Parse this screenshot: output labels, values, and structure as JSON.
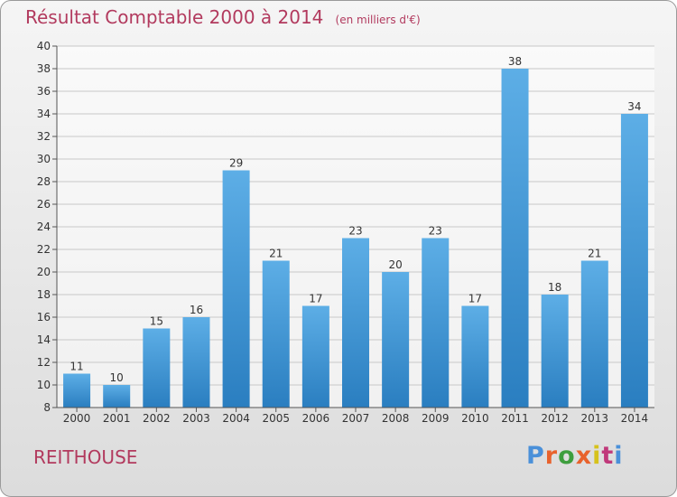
{
  "chart_data": {
    "type": "bar",
    "title": "Résultat Comptable 2000 à 2014",
    "subtitle": "(en milliers d'€)",
    "categories": [
      "2000",
      "2001",
      "2002",
      "2003",
      "2004",
      "2005",
      "2006",
      "2007",
      "2008",
      "2009",
      "2010",
      "2011",
      "2012",
      "2013",
      "2014"
    ],
    "values": [
      11,
      10,
      15,
      16,
      29,
      21,
      17,
      23,
      20,
      23,
      17,
      38,
      18,
      21,
      34
    ],
    "ylim": [
      8,
      40
    ],
    "yticks": [
      8,
      10,
      12,
      14,
      16,
      18,
      20,
      22,
      24,
      26,
      28,
      30,
      32,
      34,
      36,
      38,
      40
    ],
    "grid": true,
    "bar_color_top": "#5daee6",
    "bar_color_bottom": "#2a7ec0",
    "title_color": "#b23a5e"
  },
  "footer": {
    "place": "REITHOUSE",
    "logo_text": "Proxiti",
    "logo_colors": [
      "#4a90d9",
      "#e8622c",
      "#3e9e3e",
      "#e8622c",
      "#d6c21c",
      "#c0397a",
      "#4a90d9"
    ]
  }
}
